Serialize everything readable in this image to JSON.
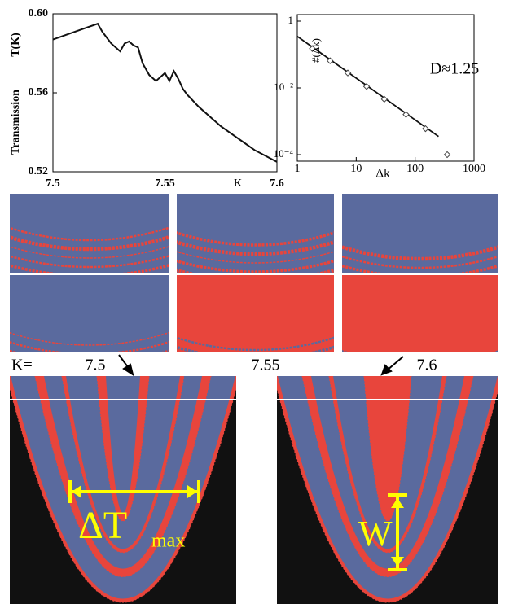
{
  "chart_data": [
    {
      "type": "line",
      "y_label_top": "T(K)",
      "y_label": "Transmission",
      "x_label": "K",
      "x": [
        7.5,
        7.505,
        7.51,
        7.515,
        7.52,
        7.522,
        7.524,
        7.526,
        7.528,
        7.53,
        7.532,
        7.534,
        7.536,
        7.538,
        7.54,
        7.543,
        7.546,
        7.548,
        7.55,
        7.552,
        7.554,
        7.556,
        7.558,
        7.56,
        7.565,
        7.57,
        7.575,
        7.58,
        7.585,
        7.59,
        7.595,
        7.6
      ],
      "values": [
        0.587,
        0.589,
        0.591,
        0.593,
        0.595,
        0.591,
        0.588,
        0.585,
        0.583,
        0.581,
        0.585,
        0.586,
        0.584,
        0.583,
        0.575,
        0.569,
        0.566,
        0.568,
        0.57,
        0.566,
        0.571,
        0.567,
        0.562,
        0.559,
        0.553,
        0.548,
        0.543,
        0.539,
        0.535,
        0.531,
        0.528,
        0.525
      ],
      "color": "#111111",
      "xlim": [
        7.5,
        7.6
      ],
      "xticks": [
        7.5,
        7.55,
        7.6
      ],
      "ylim": [
        0.52,
        0.6
      ],
      "yticks": [
        0.52,
        0.56,
        {
          "value": 0.6,
          "label": "0.60"
        }
      ]
    },
    {
      "type": "scatter",
      "x_label": "Δk",
      "y_label": "#(Δk)",
      "annotation": "D≈1.25",
      "log_x": true,
      "log_y": true,
      "series": [
        {
          "style": "line",
          "color": "#111111",
          "x": [
            1,
            250
          ],
          "values": [
            0.35,
            0.00035
          ]
        },
        {
          "style": "marker",
          "color": "#444444",
          "x": [
            1.8,
            3.6,
            7.2,
            15,
            30,
            70,
            150,
            350
          ],
          "values": [
            0.15,
            0.065,
            0.028,
            0.011,
            0.0046,
            0.0016,
            0.0006,
            0.0001
          ]
        }
      ],
      "xlim": [
        1,
        1000
      ],
      "xticks": [
        1,
        10,
        100,
        1000
      ],
      "ylim": [
        0.0001,
        1
      ],
      "yticks": [
        {
          "value": 0.0001,
          "label": "10⁻⁴"
        },
        {
          "value": 0.01,
          "label": "10⁻²"
        },
        1
      ]
    }
  ],
  "annotations": {
    "k_label": "K=",
    "k_values": [
      "7.5",
      "7.55",
      "7.6"
    ],
    "delta_t": "ΔT",
    "delta_t_sub": "max",
    "width": "W"
  }
}
